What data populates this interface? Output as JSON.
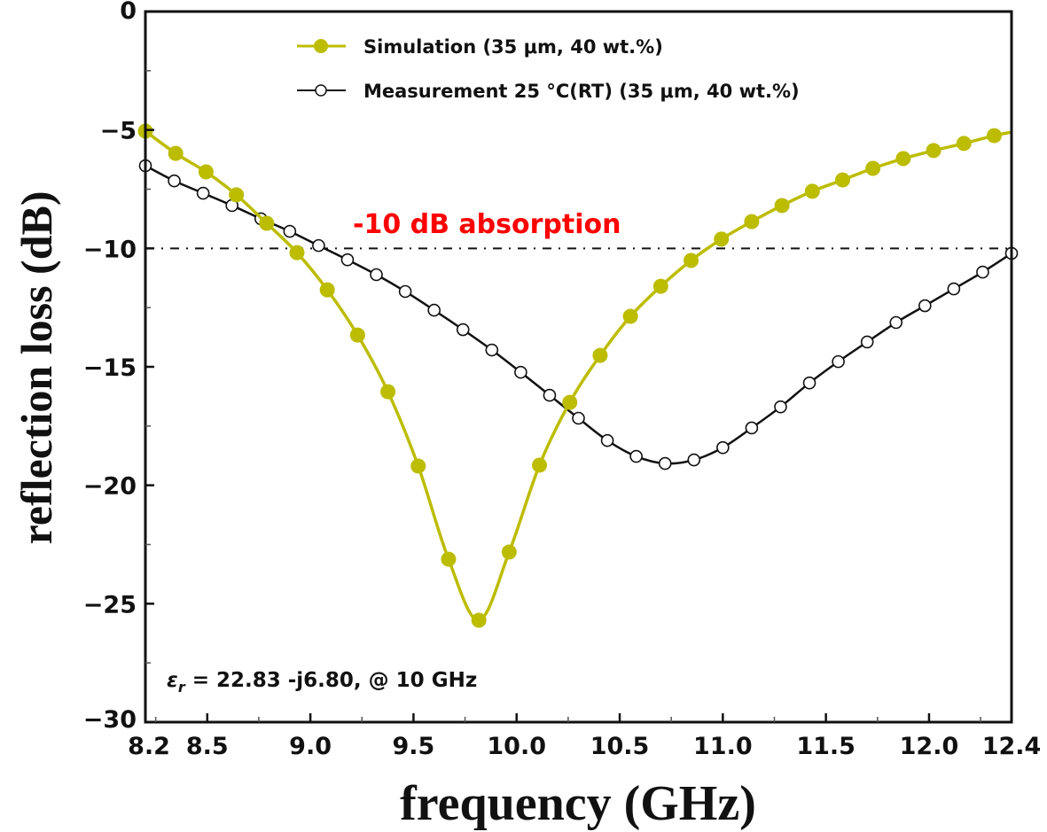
{
  "chart_data": {
    "type": "line",
    "title": "",
    "xlabel": "frequency (GHz)",
    "ylabel": "reflection loss (dB)",
    "xlim": [
      8.2,
      12.4
    ],
    "ylim": [
      -30,
      0
    ],
    "grid": false,
    "legend_position": "top-right",
    "x_ticks": [
      8.2,
      8.5,
      9.0,
      9.5,
      10.0,
      10.5,
      11.0,
      11.5,
      12.0,
      12.4
    ],
    "x_tick_labels": [
      "8.2",
      "8.5",
      "9.0",
      "9.5",
      "10.0",
      "10.5",
      "11.0",
      "11.5",
      "12.0",
      "12.4"
    ],
    "x_minor_ticks": [
      8.25,
      8.75,
      9.25,
      9.75,
      10.25,
      10.75,
      11.25,
      11.75,
      12.25
    ],
    "y_ticks": [
      0,
      -5,
      -10,
      -15,
      -20,
      -25,
      -30
    ],
    "y_tick_labels": [
      "0",
      "−5",
      "−10",
      "−15",
      "−20",
      "−25",
      "−30"
    ],
    "y_minor_ticks": [
      -2.5,
      -7.5,
      -12.5,
      -17.5,
      -22.5,
      -27.5
    ],
    "reference_line": {
      "y": -10,
      "style": "dash-dot",
      "label": "-10 dB absorption",
      "label_color": "#ff0000"
    },
    "annotation": {
      "symbol": "ε",
      "subscript": "r",
      "text": " = 22.83 -j6.80, @ 10 GHz"
    },
    "series": [
      {
        "name": "Simulation (35 μm, 40 wt.%)",
        "color": "#bcbc00",
        "marker": "filled-circle",
        "x": [
          8.2,
          8.347,
          8.494,
          8.641,
          8.788,
          8.935,
          9.082,
          9.229,
          9.376,
          9.523,
          9.67,
          9.817,
          9.964,
          10.111,
          10.258,
          10.405,
          10.552,
          10.699,
          10.846,
          10.993,
          11.14,
          11.287,
          11.434,
          11.581,
          11.728,
          11.875,
          12.022,
          12.169,
          12.316
        ],
        "y": [
          -5.05,
          -5.99,
          -6.77,
          -7.74,
          -8.94,
          -10.18,
          -11.75,
          -13.66,
          -16.05,
          -19.19,
          -23.12,
          -25.7,
          -22.82,
          -19.15,
          -16.5,
          -14.52,
          -12.87,
          -11.6,
          -10.51,
          -9.61,
          -8.87,
          -8.19,
          -7.59,
          -7.11,
          -6.62,
          -6.21,
          -5.87,
          -5.57,
          -5.24
        ],
        "curve_end": {
          "x": 12.4,
          "y": -5.09
        }
      },
      {
        "name": "Measurement 25 °C(RT) (35 μm, 40 wt.%)",
        "color": "#111111",
        "marker": "open-circle",
        "x": [
          8.2,
          8.34,
          8.48,
          8.62,
          8.76,
          8.9,
          9.04,
          9.18,
          9.32,
          9.46,
          9.6,
          9.74,
          9.88,
          10.02,
          10.16,
          10.3,
          10.44,
          10.58,
          10.72,
          10.86,
          11.0,
          11.14,
          11.28,
          11.42,
          11.56,
          11.7,
          11.84,
          11.98,
          12.12,
          12.26,
          12.4
        ],
        "y": [
          -6.51,
          -7.15,
          -7.67,
          -8.19,
          -8.75,
          -9.28,
          -9.88,
          -10.48,
          -11.11,
          -11.82,
          -12.61,
          -13.43,
          -14.29,
          -15.23,
          -16.2,
          -17.17,
          -18.11,
          -18.78,
          -19.08,
          -18.93,
          -18.41,
          -17.58,
          -16.69,
          -15.68,
          -14.78,
          -13.95,
          -13.13,
          -12.42,
          -11.71,
          -11.0,
          -10.21
        ]
      }
    ]
  }
}
